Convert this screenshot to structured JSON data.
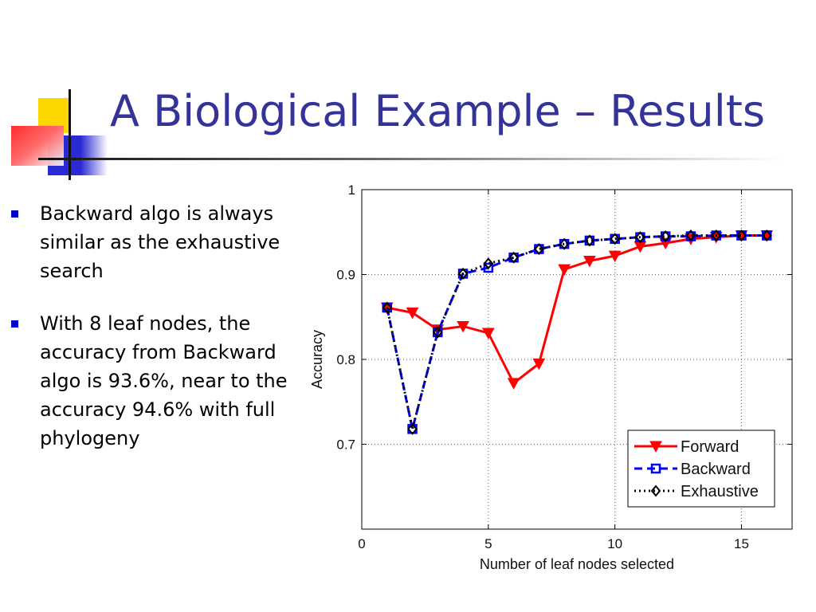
{
  "slide": {
    "title": "A Biological Example – Results",
    "accent_colors": {
      "yellow": "#ffd700",
      "blue": "#2b2bd6",
      "red": "#ff2a2a"
    },
    "bullets": [
      {
        "text": "Backward algo is always similar as the exhaustive search"
      },
      {
        "text": "With 8 leaf nodes, the accuracy from Backward algo is 93.6%, near to the accuracy 94.6% with full phylogeny"
      }
    ]
  },
  "chart_data": {
    "type": "line",
    "title": "",
    "xlabel": "Number of leaf nodes selected",
    "ylabel": "Accuracy",
    "xlim": [
      0,
      17
    ],
    "ylim": [
      0.6,
      1.0
    ],
    "xticks": [
      0,
      5,
      10,
      15
    ],
    "yticks": [
      0.7,
      0.8,
      0.9,
      1.0
    ],
    "xtick_labels": [
      "0",
      "5",
      "10",
      "15"
    ],
    "ytick_labels": [
      "0.7",
      "0.8",
      "0.9",
      "1"
    ],
    "grid": true,
    "legend_position": "bottom-right",
    "x": [
      1,
      2,
      3,
      4,
      5,
      6,
      7,
      8,
      9,
      10,
      11,
      12,
      13,
      14,
      15,
      16
    ],
    "series": [
      {
        "name": "Forward",
        "color": "#ff0000",
        "line": "solid",
        "marker": "triangle-down",
        "values": [
          0.861,
          0.855,
          0.835,
          0.839,
          0.831,
          0.772,
          0.795,
          0.906,
          0.916,
          0.922,
          0.933,
          0.937,
          0.942,
          0.944,
          0.946,
          0.946
        ]
      },
      {
        "name": "Backward",
        "color": "#0000ff",
        "line": "dashed",
        "marker": "square",
        "values": [
          0.861,
          0.718,
          0.832,
          0.901,
          0.908,
          0.92,
          0.93,
          0.936,
          0.94,
          0.942,
          0.944,
          0.945,
          0.945,
          0.946,
          0.946,
          0.946
        ]
      },
      {
        "name": "Exhaustive",
        "color": "#000000",
        "line": "dotted",
        "marker": "diamond",
        "values": [
          0.861,
          0.718,
          0.832,
          0.901,
          0.913,
          0.92,
          0.93,
          0.936,
          0.94,
          0.942,
          0.944,
          0.945,
          0.946,
          0.946,
          0.946,
          0.946
        ]
      }
    ]
  }
}
